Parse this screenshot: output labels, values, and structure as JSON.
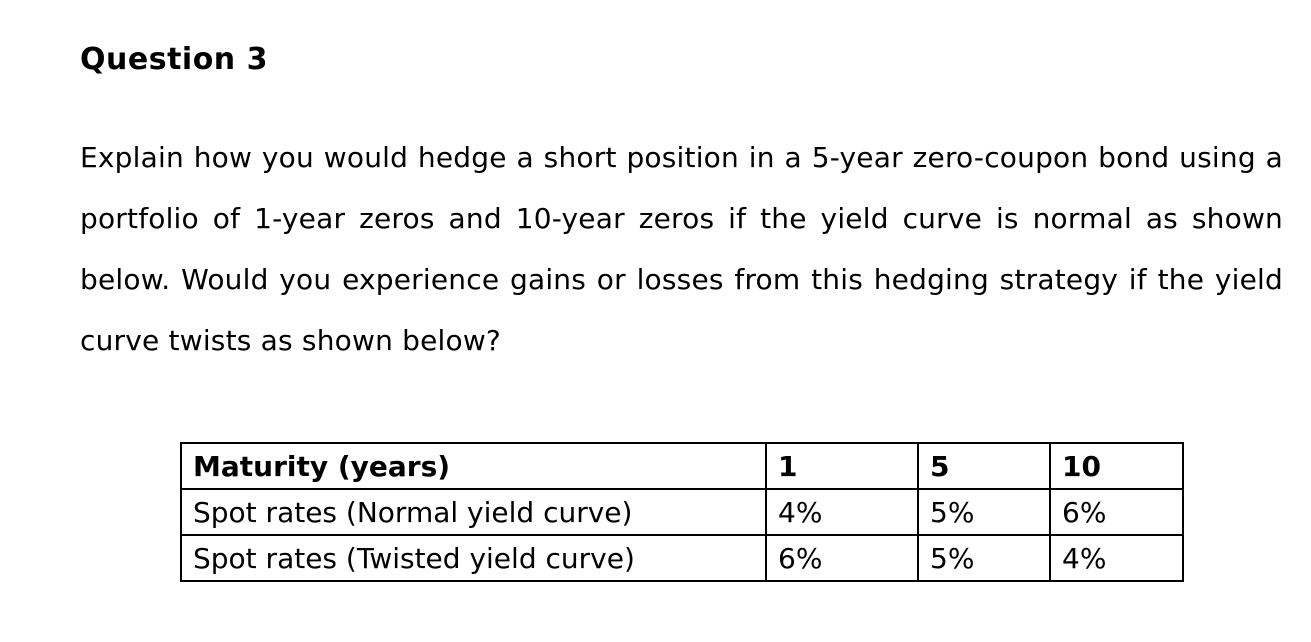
{
  "doc": {
    "heading": "Question 3",
    "paragraph": "Explain how you would hedge a short position in a 5-year zero-coupon bond using a portfolio of 1-year zeros and 10-year zeros if the yield curve is normal as shown below. Would you experience gains or losses from this hedging strategy if the yield curve twists as shown below?",
    "table": {
      "header": [
        "Maturity (years)",
        "1",
        "5",
        "10"
      ],
      "rows": [
        [
          "Spot rates (Normal yield curve)",
          "4%",
          "5%",
          "6%"
        ],
        [
          "Spot rates (Twisted yield curve)",
          "6%",
          "5%",
          "4%"
        ]
      ]
    },
    "colors": {
      "background": "#ffffff",
      "text": "#000000",
      "table_border": "#000000"
    }
  }
}
